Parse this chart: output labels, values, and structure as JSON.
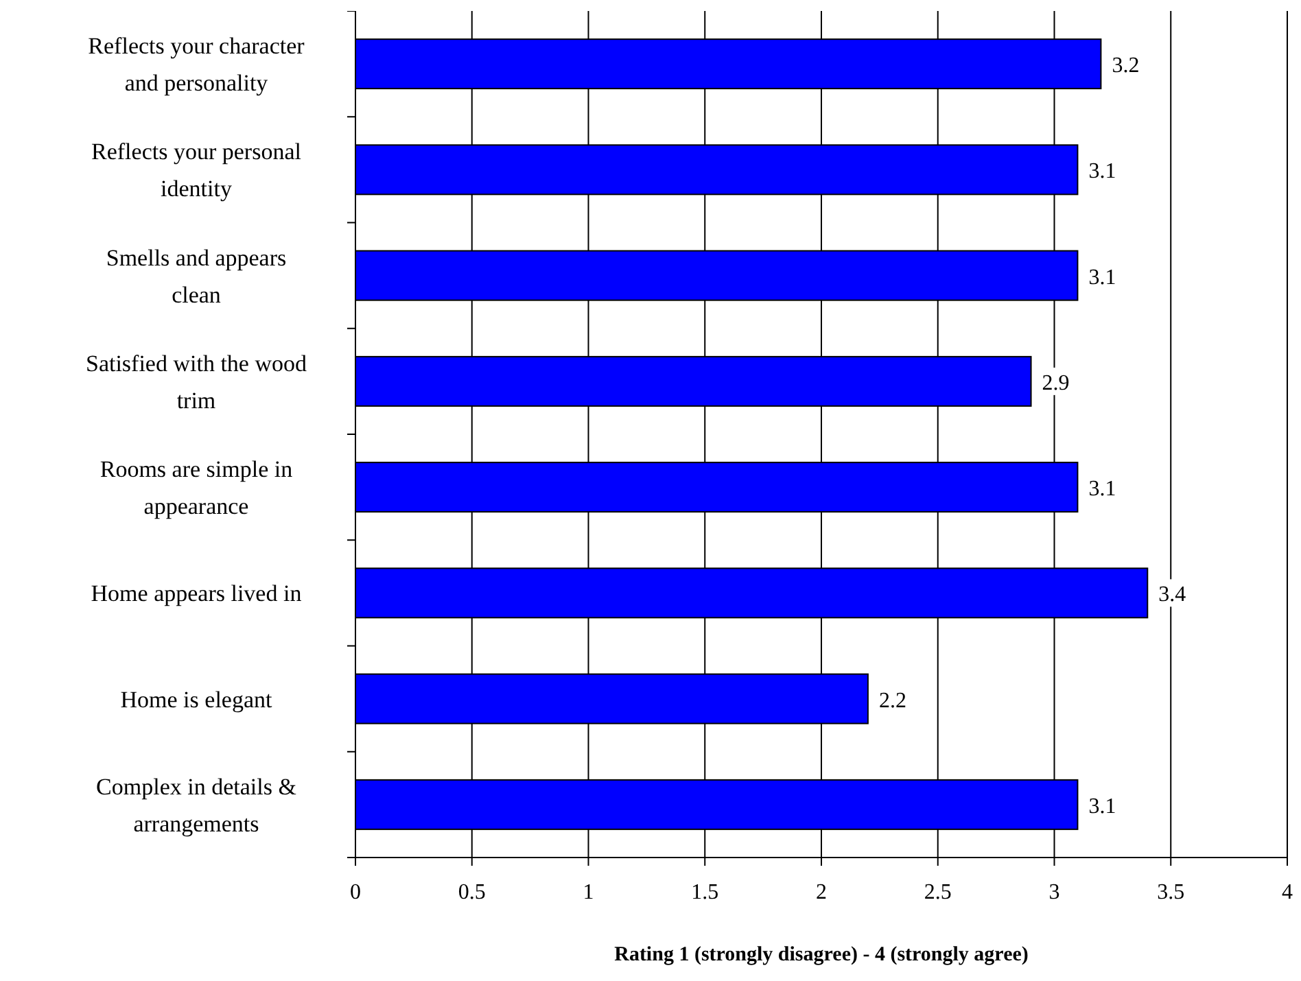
{
  "chart_data": {
    "type": "bar",
    "orientation": "horizontal",
    "xlabel": "Rating 1 (strongly disagree) - 4 (strongly agree)",
    "categories": [
      "Reflects your character and personality",
      "Reflects your personal identity",
      "Smells and appears clean",
      "Satisfied with the wood trim",
      "Rooms are simple in appearance",
      "Home appears lived in",
      "Home is elegant",
      "Complex in details & arrangements"
    ],
    "values": [
      3.2,
      3.1,
      3.1,
      2.9,
      3.1,
      3.4,
      2.2,
      3.1
    ],
    "color": "#0000ff",
    "xlim": [
      0,
      4
    ],
    "xticks": [
      0,
      0.5,
      1,
      1.5,
      2,
      2.5,
      3,
      3.5,
      4
    ],
    "grid": "x",
    "data_labels": true
  }
}
